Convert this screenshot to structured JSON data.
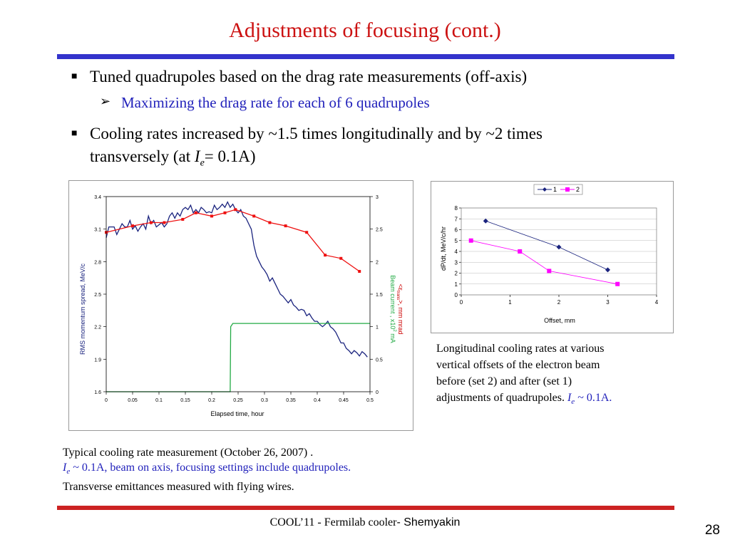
{
  "title": "Adjustments of focusing (cont.)",
  "bullets": {
    "b1": "Tuned quadrupoles based on the drag rate measurements (off-axis)",
    "sub1": "Maximizing the drag rate for each of 6 quadrupoles",
    "b2_line1": "Cooling rates increased by ~1.5 times longitudinally and by ~2 times",
    "b2_line2_pre": "transversely (at ",
    "b2_var": "I",
    "b2_sub": "e",
    "b2_post": "= 0.1A)"
  },
  "caption_left": {
    "line1": "Typical cooling rate measurement (October 26, 2007) .",
    "line2_var": "I",
    "line2_sub": "e",
    "line2_rest": " ~ 0.1A, beam on axis, focusing settings include quadrupoles.",
    "line3": "Transverse emittances measured with flying wires."
  },
  "caption_right": {
    "line1": "Longitudinal cooling rates at various",
    "line2": "vertical offsets of the electron beam",
    "line3": "before (set 2) and after (set 1)",
    "line4": "adjustments of quadrupoles. ",
    "var": "I",
    "sub": "e",
    "rest": " ~ 0.1A."
  },
  "footer": {
    "text": "COOL’11 - Fermilab cooler",
    "name": "- Shemyakin"
  },
  "page_number": "28",
  "colors": {
    "title": "#cc1111",
    "accent_blue": "#2222bb",
    "bar_top": "#3333cc",
    "bar_bottom": "#cc2222"
  },
  "chart_data": [
    {
      "type": "line",
      "xlabel": "Elapsed time, hour",
      "ylabel": "RMS momentum spread, MeV/c",
      "y2label_line1": "<ε",
      "y2label_sub": "trans",
      "y2label_rest": ">, mm mrad",
      "y2label_line2": "Beam current , x10",
      "y2label_sup": "2",
      "y2label_tail": " mA",
      "xlim": [
        0,
        0.5
      ],
      "ylim": [
        1.6,
        3.4
      ],
      "y2lim": [
        0,
        3
      ],
      "x_ticks": [
        "0",
        "0.05",
        "0.1",
        "0.15",
        "0.2",
        "0.25",
        "0.3",
        "0.35",
        "0.4",
        "0.45",
        "0.5"
      ],
      "y_ticks": [
        "1.6",
        "1.9",
        "2.2",
        "2.5",
        "2.8",
        "3.1",
        "3.4"
      ],
      "y2_ticks": [
        "0",
        "0.5",
        "1",
        "1.5",
        "2",
        "2.5",
        "3"
      ],
      "series": [
        {
          "color": "#1a237e",
          "axis": "left",
          "x": [
            0,
            0.005,
            0.01,
            0.015,
            0.02,
            0.025,
            0.03,
            0.035,
            0.04,
            0.045,
            0.05,
            0.055,
            0.06,
            0.065,
            0.07,
            0.075,
            0.08,
            0.085,
            0.09,
            0.095,
            0.1,
            0.105,
            0.11,
            0.115,
            0.12,
            0.125,
            0.13,
            0.135,
            0.14,
            0.145,
            0.15,
            0.155,
            0.16,
            0.165,
            0.17,
            0.175,
            0.18,
            0.185,
            0.19,
            0.195,
            0.2,
            0.205,
            0.21,
            0.215,
            0.22,
            0.225,
            0.23,
            0.235,
            0.24,
            0.245,
            0.25,
            0.255,
            0.26,
            0.265,
            0.27,
            0.275,
            0.28,
            0.285,
            0.29,
            0.295,
            0.3,
            0.305,
            0.31,
            0.315,
            0.32,
            0.325,
            0.33,
            0.335,
            0.34,
            0.345,
            0.35,
            0.355,
            0.36,
            0.365,
            0.37,
            0.375,
            0.38,
            0.385,
            0.39,
            0.395,
            0.4,
            0.405,
            0.41,
            0.415,
            0.42,
            0.425,
            0.43,
            0.435,
            0.44,
            0.445,
            0.45,
            0.455,
            0.46,
            0.465,
            0.47,
            0.475,
            0.48,
            0.485,
            0.49,
            0.495
          ],
          "y": [
            3.02,
            3.12,
            3.12,
            3.12,
            3.05,
            3.1,
            3.15,
            3.12,
            3.12,
            3.18,
            3.1,
            3.13,
            3.08,
            3.12,
            3.15,
            3.1,
            3.22,
            3.15,
            3.18,
            3.12,
            3.14,
            3.16,
            3.12,
            3.15,
            3.22,
            3.25,
            3.2,
            3.25,
            3.22,
            3.28,
            3.3,
            3.28,
            3.32,
            3.25,
            3.28,
            3.25,
            3.3,
            3.28,
            3.25,
            3.26,
            3.25,
            3.32,
            3.28,
            3.3,
            3.33,
            3.3,
            3.35,
            3.3,
            3.33,
            3.28,
            3.25,
            3.28,
            3.22,
            3.2,
            3.15,
            3.1,
            2.95,
            2.85,
            2.8,
            2.75,
            2.72,
            2.68,
            2.62,
            2.65,
            2.6,
            2.55,
            2.5,
            2.48,
            2.45,
            2.42,
            2.45,
            2.4,
            2.38,
            2.35,
            2.36,
            2.35,
            2.3,
            2.32,
            2.28,
            2.25,
            2.25,
            2.22,
            2.2,
            2.22,
            2.25,
            2.2,
            2.18,
            2.15,
            2.1,
            2.05,
            2.05,
            2.0,
            1.98,
            1.95,
            1.98,
            1.96,
            1.93,
            1.97,
            1.95,
            1.92
          ]
        },
        {
          "color": "#ee1111",
          "axis": "right",
          "markers": true,
          "x": [
            0,
            0.05,
            0.085,
            0.11,
            0.145,
            0.17,
            0.2,
            0.225,
            0.245,
            0.28,
            0.31,
            0.34,
            0.38,
            0.415,
            0.445,
            0.48
          ],
          "y": [
            2.45,
            2.55,
            2.6,
            2.6,
            2.65,
            2.75,
            2.7,
            2.75,
            2.8,
            2.7,
            2.6,
            2.55,
            2.45,
            2.1,
            2.05,
            1.85
          ]
        },
        {
          "color": "#22aa44",
          "axis": "right",
          "x": [
            0,
            0.235,
            0.236,
            0.24,
            0.25,
            0.3,
            0.35,
            0.4,
            0.45,
            0.5
          ],
          "y": [
            0,
            0,
            1.0,
            1.05,
            1.05,
            1.05,
            1.05,
            1.05,
            1.05,
            1.05
          ]
        }
      ]
    },
    {
      "type": "line",
      "xlabel": "Offset, mm",
      "ylabel": "dP/dt, MeV/c/hr",
      "xlim": [
        0,
        4
      ],
      "ylim": [
        0,
        8
      ],
      "x_ticks": [
        "0",
        "1",
        "2",
        "3",
        "4"
      ],
      "y_ticks": [
        "0",
        "1",
        "2",
        "3",
        "4",
        "5",
        "6",
        "7",
        "8"
      ],
      "legend": "top-right",
      "series": [
        {
          "name": "1",
          "color": "#1a237e",
          "marker": "diamond",
          "x": [
            0.5,
            2.0,
            3.0
          ],
          "y": [
            6.8,
            4.4,
            2.3
          ]
        },
        {
          "name": "2",
          "color": "#ff00ff",
          "marker": "square",
          "x": [
            0.2,
            1.2,
            1.8,
            3.2
          ],
          "y": [
            5.0,
            4.0,
            2.2,
            1.0
          ]
        }
      ]
    }
  ]
}
